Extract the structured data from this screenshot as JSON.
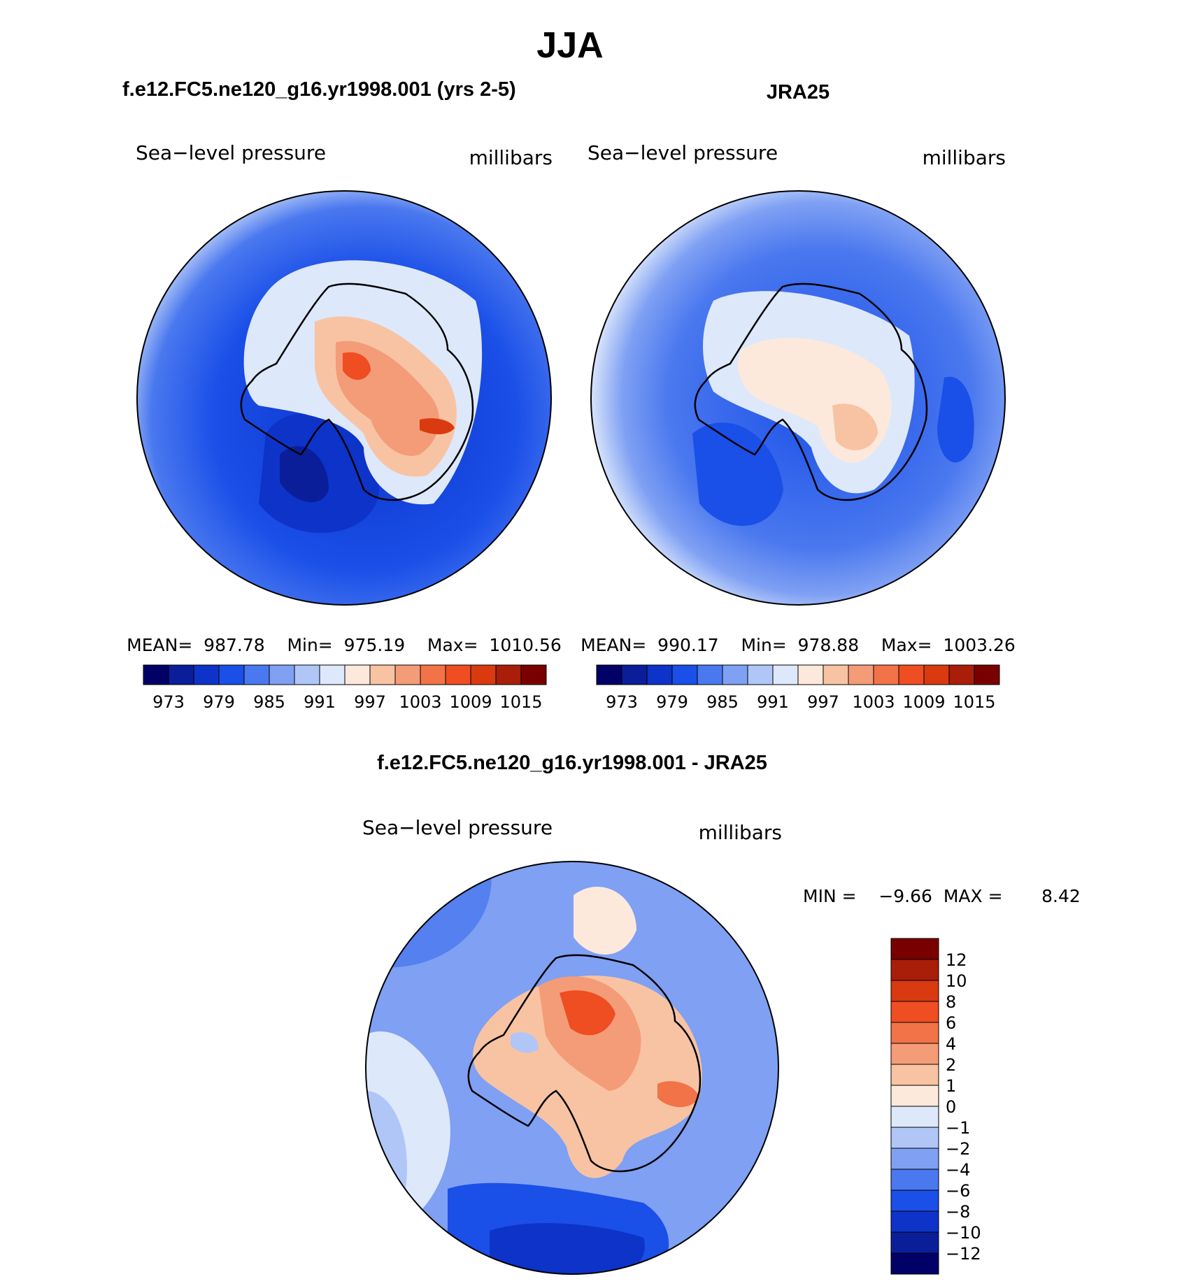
{
  "figure": {
    "season": "JJA",
    "colors": {
      "levels": [
        "#000066",
        "#0b1e9a",
        "#0d33c9",
        "#1a4fe8",
        "#4a78ef",
        "#7fa0f3",
        "#b0c6f7",
        "#dde8fb",
        "#fde9dc",
        "#f8c3a3",
        "#f49c77",
        "#f27347",
        "#ef4d22",
        "#d93a10",
        "#a81e08",
        "#7a0000"
      ]
    },
    "panels": [
      {
        "id": "model",
        "title": "f.e12.FC5.ne120_g16.yr1998.001 (yrs 2-5)",
        "variable": "Sea−level pressure",
        "units": "millibars",
        "stats": "MEAN=  987.78    Min=  975.19    Max=  1010.56",
        "colorbar_labels": [
          "973",
          "979",
          "985",
          "991",
          "997",
          "1003",
          "1009",
          "1015"
        ]
      },
      {
        "id": "obs",
        "title": "JRA25",
        "variable": "Sea−level pressure",
        "units": "millibars",
        "stats": "MEAN=  990.17    Min=  978.88    Max=  1003.26",
        "colorbar_labels": [
          "973",
          "979",
          "985",
          "991",
          "997",
          "1003",
          "1009",
          "1015"
        ]
      }
    ],
    "difference": {
      "title": "f.e12.FC5.ne120_g16.yr1998.001 - JRA25",
      "variable": "Sea−level pressure",
      "units": "millibars",
      "stats": "MIN =    −9.66  MAX =       8.42",
      "colorbar_labels": [
        "12",
        "10",
        "8",
        "6",
        "4",
        "2",
        "1",
        "0",
        "−1",
        "−2",
        "−4",
        "−6",
        "−8",
        "−10",
        "−12"
      ]
    }
  }
}
